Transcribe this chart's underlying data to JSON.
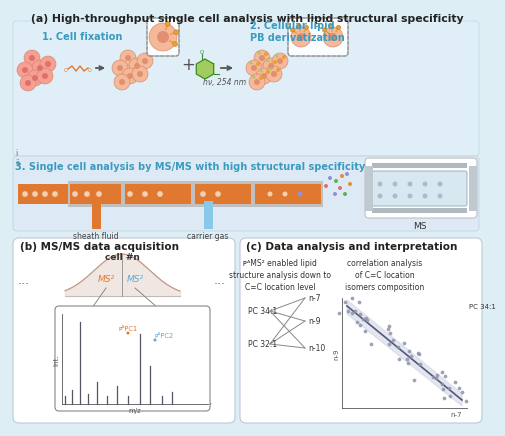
{
  "title_a": "(a) High-throughput single cell analysis with lipid structural specificity",
  "title_b": "(b) MS/MS data acquisition",
  "title_c": "(c) Data analysis and interpretation",
  "step1": "1. Cell fixation",
  "step2": "2. Cellular lipid\nPB derivatization",
  "step3": "3. Single cell analysis by MS/MS with high structural specificity",
  "sheath_fluid": "sheath fluid",
  "carrier_gas": "carrier gas",
  "ms_label": "MS",
  "cell_n": "cell #n",
  "ms1": "MS²",
  "ms2": "MS²",
  "pb_pc1": "ᴘᴬPC1",
  "pb_pc2": "ᴘᴬPC2",
  "mz": "m/z",
  "int": "Int.",
  "dots": "...",
  "sub1_left": "ᴘᴬMS² enabled lipid\nstructure analysis down to\nC=C location level",
  "sub1_right": "correlation analysis\nof C=C location\nisomers composition",
  "pc341": "PC 34:1",
  "pc321": "PC 32:1",
  "n7": "n-7",
  "n9": "n-9",
  "n10": "n-10",
  "pc341_right": "PC 34:1",
  "n7_right": "n-7",
  "n9_ax": "n-9",
  "hv": "hν, 254 nm",
  "bg_color": "#ddeef5",
  "panel_bg": "#eaf3f8",
  "box_bg": "#ffffff",
  "orange_color": "#e07830",
  "blue_color": "#5aaad0",
  "cell_pink": "#f5a898",
  "cell_inner": "#e88878",
  "cell_orange": "#f5c098",
  "cell_inner_orange": "#e8a068",
  "gray_color": "#b0b0b0",
  "green_color": "#3a8a28",
  "green_fill": "#a0cc60",
  "title_color": "#222222",
  "step_color": "#3a9bbf",
  "or_cell_orange": "#e8a030"
}
